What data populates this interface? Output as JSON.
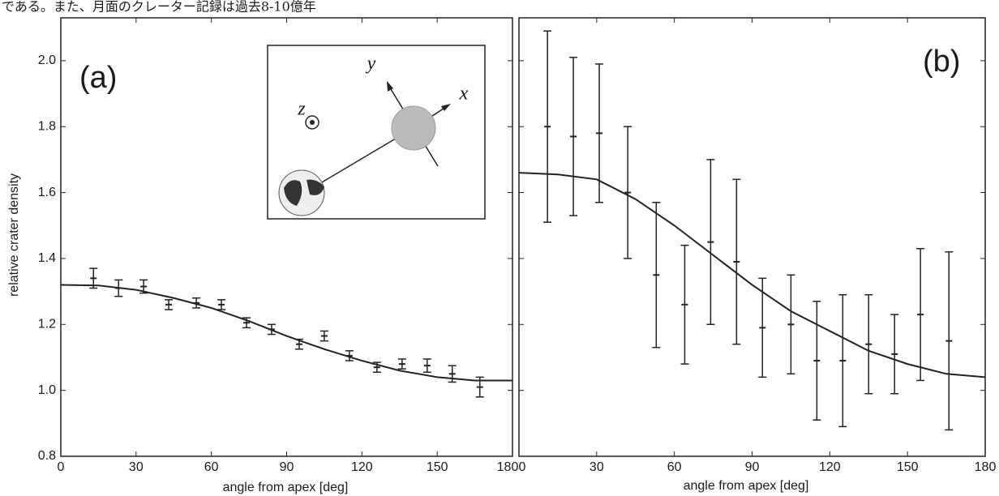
{
  "header_text": "である。また、月面のクレーター記録は過去8-10億年",
  "chart_data": [
    {
      "type": "errorbar",
      "panel_label": "(a)",
      "xlabel": "angle from apex [deg]",
      "ylabel": "relative crater density",
      "inset_labels": [
        "y",
        "x",
        "z"
      ],
      "xlim": [
        0,
        180
      ],
      "xticks": [
        0,
        30,
        60,
        90,
        120,
        150,
        180
      ],
      "ylim": [
        0.8,
        2.13
      ],
      "yticks": [
        0.8,
        {
          "value": 1.0,
          "label": "1.0"
        },
        1.2,
        1.4,
        1.6,
        1.8,
        {
          "value": 2.0,
          "label": "2.0"
        }
      ],
      "color": "#222",
      "points": {
        "x": [
          13,
          23,
          33,
          43,
          54,
          64,
          74,
          84,
          95,
          105,
          115,
          126,
          136,
          146,
          156,
          167
        ],
        "values": [
          1.34,
          1.31,
          1.315,
          1.26,
          1.265,
          1.26,
          1.205,
          1.185,
          1.14,
          1.165,
          1.105,
          1.07,
          1.08,
          1.075,
          1.05,
          1.01
        ],
        "errors": [
          0.03,
          0.025,
          0.02,
          0.015,
          0.015,
          0.015,
          0.015,
          0.015,
          0.015,
          0.015,
          0.015,
          0.015,
          0.015,
          0.02,
          0.025,
          0.03
        ]
      },
      "fit": {
        "x": [
          0,
          15,
          30,
          45,
          60,
          75,
          90,
          105,
          120,
          135,
          150,
          165,
          180
        ],
        "values": [
          1.32,
          1.318,
          1.305,
          1.28,
          1.25,
          1.21,
          1.165,
          1.125,
          1.09,
          1.06,
          1.04,
          1.03,
          1.03
        ]
      }
    },
    {
      "type": "errorbar",
      "panel_label": "(b)",
      "xlabel": "angle from apex [deg]",
      "xlim": [
        0,
        180
      ],
      "xticks": [
        0,
        30,
        60,
        90,
        120,
        150,
        180
      ],
      "ylim": [
        0.8,
        2.13
      ],
      "yticks": [
        0.8,
        1.0,
        1.2,
        1.4,
        1.6,
        1.8,
        2.0
      ],
      "show_ytick_labels": false,
      "color": "#222",
      "points": {
        "x": [
          11,
          21,
          31,
          42,
          53,
          64,
          74,
          84,
          94,
          105,
          115,
          125,
          135,
          145,
          155,
          166
        ],
        "values": [
          1.8,
          1.77,
          1.78,
          1.6,
          1.35,
          1.26,
          1.45,
          1.39,
          1.19,
          1.2,
          1.09,
          1.09,
          1.14,
          1.11,
          1.23,
          1.15
        ],
        "errors": [
          0.29,
          0.24,
          0.21,
          0.2,
          0.22,
          0.18,
          0.25,
          0.25,
          0.15,
          0.15,
          0.18,
          0.2,
          0.15,
          0.12,
          0.2,
          0.27
        ]
      },
      "fit": {
        "x": [
          0,
          15,
          30,
          45,
          60,
          75,
          90,
          105,
          120,
          135,
          150,
          165,
          180
        ],
        "values": [
          1.66,
          1.655,
          1.64,
          1.58,
          1.5,
          1.41,
          1.32,
          1.24,
          1.18,
          1.12,
          1.08,
          1.05,
          1.04
        ]
      }
    }
  ]
}
